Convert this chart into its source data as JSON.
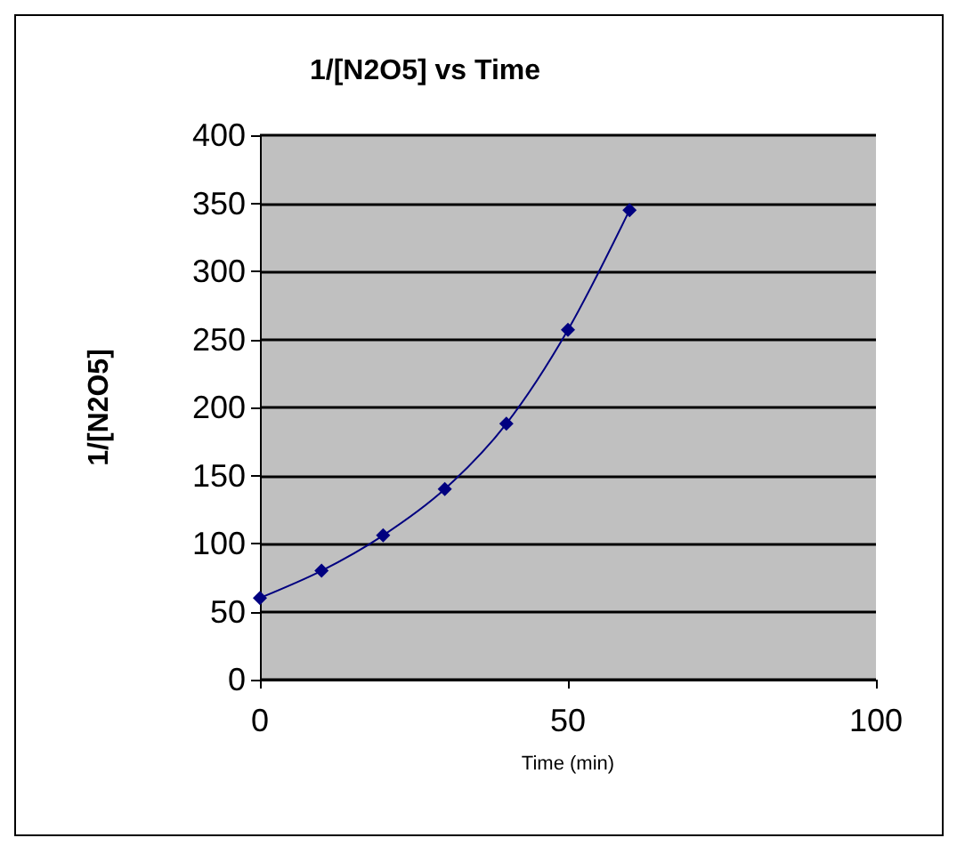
{
  "chart_data": {
    "type": "line",
    "title": "1/[N2O5] vs Time",
    "xlabel": "Time (min)",
    "ylabel": "1/[N2O5]",
    "x": [
      0,
      10,
      20,
      30,
      40,
      50,
      60
    ],
    "series": [
      {
        "color": "#000080",
        "values": [
          60,
          80,
          106,
          140,
          188,
          257,
          345
        ]
      }
    ],
    "xlim": [
      0,
      100
    ],
    "xticks": [
      0,
      50,
      100
    ],
    "ylim": [
      0,
      400
    ],
    "yticks": [
      0,
      50,
      100,
      150,
      200,
      250,
      300,
      350,
      400
    ],
    "grid": "y",
    "marker": "diamond",
    "line_style": "solid"
  }
}
